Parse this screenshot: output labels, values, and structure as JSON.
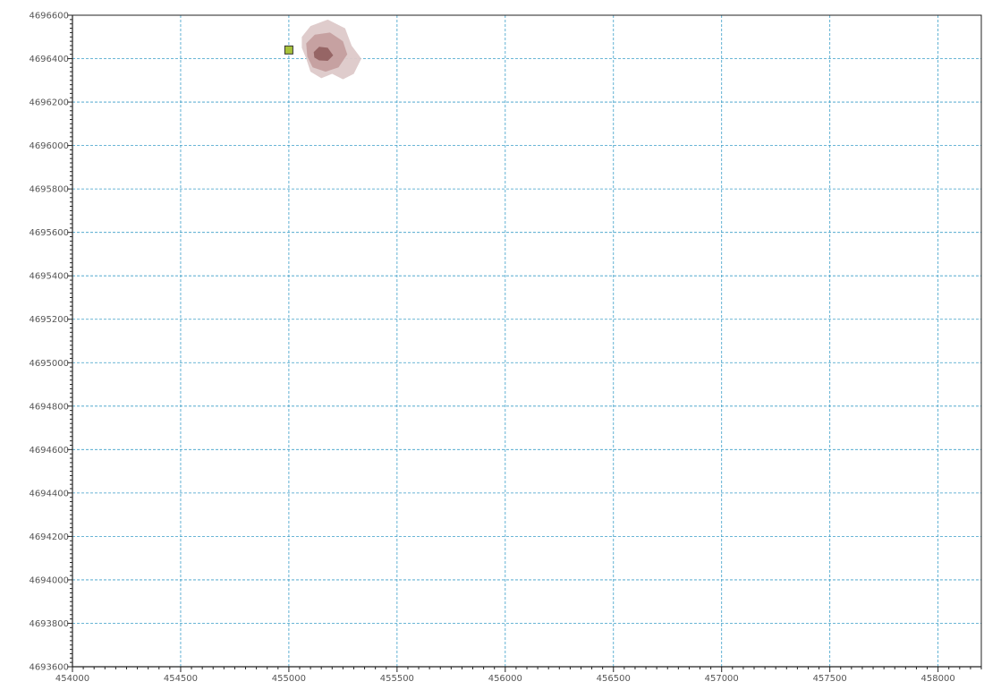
{
  "chart_data": {
    "type": "scatter",
    "title": "",
    "xlabel": "",
    "ylabel": "",
    "xlim": [
      454000,
      458200
    ],
    "ylim": [
      4693600,
      4696600
    ],
    "grid": true,
    "x_ticks": [
      454000,
      454500,
      455000,
      455500,
      456000,
      456500,
      457000,
      457500,
      458000
    ],
    "y_ticks": [
      4693600,
      4693800,
      4694000,
      4694200,
      4694400,
      4694600,
      4694800,
      4695000,
      4695200,
      4695400,
      4695600,
      4695800,
      4696000,
      4696200,
      4696400,
      4696600
    ],
    "x_tick_labels": [
      "454000",
      "454500",
      "455000",
      "455500",
      "456000",
      "456500",
      "457000",
      "457500",
      "458000"
    ],
    "y_tick_labels": [
      "4693600",
      "4693800",
      "4694000",
      "4694200",
      "4694400",
      "4694600",
      "4694800",
      "4695000",
      "4695200",
      "4695400",
      "4695600",
      "4695800",
      "4696000",
      "4696200",
      "4696400",
      "4696600"
    ],
    "x_minor_step": 50,
    "y_minor_step": 20,
    "colors": {
      "grid": "#3a9ec8",
      "marker": "#a8c23a",
      "contour_outer": "#ddc9c9",
      "contour_mid": "#c49e9e",
      "contour_inner": "#946262"
    },
    "points": [
      {
        "x": 455000,
        "y": 4696440,
        "marker": "square"
      }
    ],
    "contours": [
      {
        "level": "outer",
        "polygon": [
          [
            455060,
            4696500
          ],
          [
            455100,
            4696550
          ],
          [
            455180,
            4696580
          ],
          [
            455260,
            4696540
          ],
          [
            455290,
            4696460
          ],
          [
            455335,
            4696400
          ],
          [
            455300,
            4696330
          ],
          [
            455250,
            4696305
          ],
          [
            455200,
            4696330
          ],
          [
            455150,
            4696310
          ],
          [
            455100,
            4696340
          ],
          [
            455080,
            4696400
          ],
          [
            455060,
            4696450
          ]
        ]
      },
      {
        "level": "mid",
        "polygon": [
          [
            455080,
            4696470
          ],
          [
            455120,
            4696510
          ],
          [
            455190,
            4696520
          ],
          [
            455250,
            4696480
          ],
          [
            455270,
            4696420
          ],
          [
            455230,
            4696360
          ],
          [
            455170,
            4696340
          ],
          [
            455110,
            4696360
          ],
          [
            455085,
            4696410
          ]
        ]
      },
      {
        "level": "inner",
        "polygon": [
          [
            455115,
            4696430
          ],
          [
            455140,
            4696455
          ],
          [
            455180,
            4696450
          ],
          [
            455205,
            4696415
          ],
          [
            455180,
            4696390
          ],
          [
            455140,
            4696392
          ],
          [
            455118,
            4696405
          ]
        ]
      }
    ]
  }
}
